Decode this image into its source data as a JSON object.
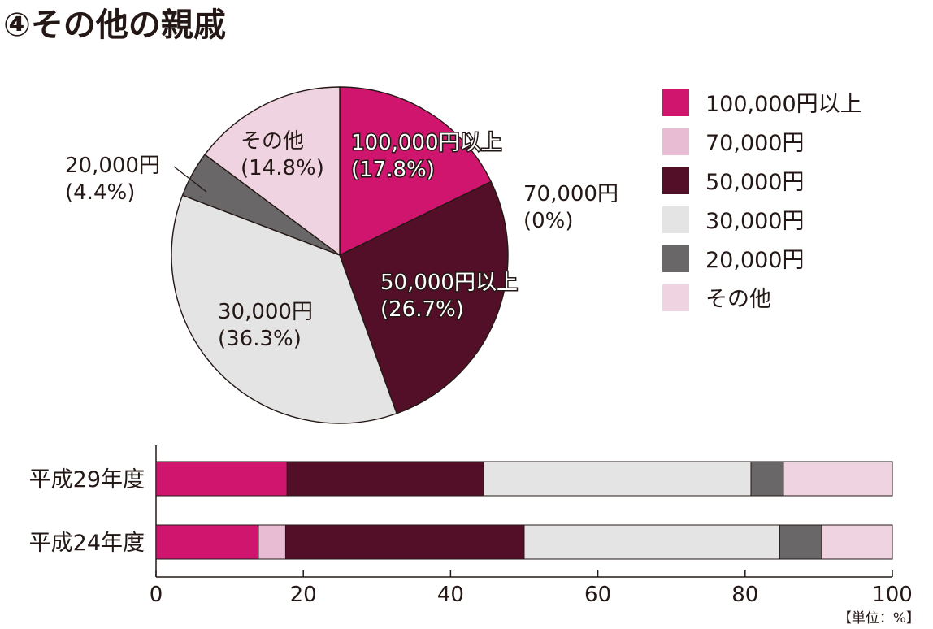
{
  "title": "④その他の親戚",
  "unit_note": "【単位：%】",
  "colors": {
    "100,000円以上": "#d0156f",
    "70,000円": "#e8bdd3",
    "50,000円": "#530f27",
    "30,000円": "#e4e4e4",
    "20,000円": "#6a6768",
    "その他": "#f0d3e0"
  },
  "legend": [
    "100,000円以上",
    "70,000円",
    "50,000円",
    "30,000円",
    "20,000円",
    "その他"
  ],
  "chart_data": [
    {
      "type": "pie",
      "slices": [
        {
          "category": "100,000円以上",
          "label": "100,000円以上",
          "pct_label": "(17.8%)",
          "value": 17.8
        },
        {
          "category": "70,000円",
          "label": "70,000円",
          "pct_label": "(0%)",
          "value": 0
        },
        {
          "category": "50,000円",
          "label": "50,000円以上",
          "pct_label": "(26.7%)",
          "value": 26.7
        },
        {
          "category": "30,000円",
          "label": "30,000円",
          "pct_label": "(36.3%)",
          "value": 36.3
        },
        {
          "category": "20,000円",
          "label": "20,000円",
          "pct_label": "(4.4%)",
          "value": 4.4
        },
        {
          "category": "その他",
          "label": "その他",
          "pct_label": "(14.8%)",
          "value": 14.8
        }
      ]
    },
    {
      "type": "bar",
      "orientation": "horizontal",
      "stacked": true,
      "categories": [
        "平成29年度",
        "平成24年度"
      ],
      "series": [
        {
          "name": "100,000円以上",
          "values": [
            17.8,
            13.9
          ]
        },
        {
          "name": "70,000円",
          "values": [
            0,
            3.7
          ]
        },
        {
          "name": "50,000円",
          "values": [
            26.7,
            32.4
          ]
        },
        {
          "name": "30,000円",
          "values": [
            36.3,
            34.7
          ]
        },
        {
          "name": "20,000円",
          "values": [
            4.4,
            5.7
          ]
        },
        {
          "name": "その他",
          "values": [
            14.8,
            9.6
          ]
        }
      ],
      "xlim": [
        0,
        100
      ],
      "xticks": [
        0,
        20,
        40,
        60,
        80,
        100
      ],
      "grid": false
    }
  ]
}
